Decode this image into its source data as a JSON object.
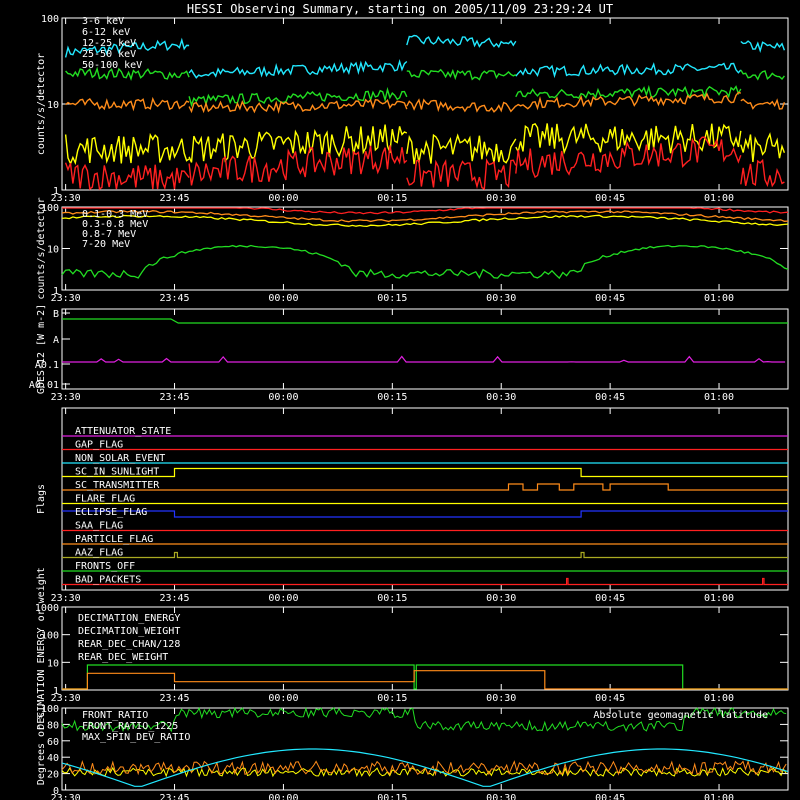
{
  "title": "HESSI Observing Summary, starting on 2005/11/09 23:29:24 UT",
  "colors": {
    "red": "#ff2020",
    "orange": "#ff8c1a",
    "yellow": "#ffff00",
    "green": "#22dd22",
    "cyan": "#22e8ff",
    "magenta": "#e020e0",
    "blue": "#2233ff",
    "olive": "#aaaa22",
    "white": "#ffffff"
  },
  "time_ticks": [
    "23:30",
    "23:45",
    "00:00",
    "00:15",
    "00:30",
    "00:45",
    "01:00"
  ],
  "chart_data": [
    {
      "type": "line",
      "panel": "count-rates-low",
      "ylabel": "counts/s/detector",
      "yscale": "log",
      "ylim": [
        1,
        100
      ],
      "yticks": [
        "1",
        "10",
        "100"
      ],
      "legend": [
        "3-6 keV",
        "6-12 keV",
        "12-25 keV",
        "25-50 keV",
        "50-100 keV"
      ],
      "series": [
        {
          "name": "50-100 keV",
          "color": "cyan",
          "segments": [
            [
              "23:30",
              40,
              "23:47",
              50
            ],
            [
              "23:47",
              22,
              "00:17",
              28
            ],
            [
              "00:17",
              55,
              "00:32",
              50
            ],
            [
              "00:32",
              24,
              "01:03",
              26
            ],
            [
              "01:03",
              48,
              "01:09",
              45
            ]
          ]
        },
        {
          "name": "25-50 keV",
          "color": "green",
          "segments": [
            [
              "23:30",
              23,
              "23:47",
              22
            ],
            [
              "23:47",
              11,
              "00:17",
              13
            ],
            [
              "00:17",
              22,
              "00:32",
              22
            ],
            [
              "00:32",
              13,
              "01:03",
              14
            ],
            [
              "01:03",
              22,
              "01:09",
              22
            ]
          ]
        },
        {
          "name": "6-12 keV",
          "color": "orange",
          "segments": [
            [
              "23:30",
              10,
              "23:47",
              10
            ],
            [
              "23:47",
              9,
              "00:17",
              10
            ],
            [
              "00:17",
              10,
              "00:32",
              9
            ],
            [
              "00:32",
              10,
              "01:03",
              12
            ],
            [
              "01:03",
              10,
              "01:09",
              10
            ]
          ]
        },
        {
          "name": "12-25 keV",
          "color": "yellow",
          "segments": [
            [
              "23:30",
              3,
              "23:47",
              3
            ],
            [
              "23:47",
              3,
              "00:17",
              4
            ],
            [
              "00:17",
              3,
              "00:32",
              3
            ],
            [
              "00:32",
              4,
              "01:03",
              4
            ],
            [
              "01:03",
              3,
              "01:09",
              3
            ]
          ]
        },
        {
          "name": "3-6 keV",
          "color": "red",
          "segments": [
            [
              "23:30",
              1.5,
              "23:47",
              1.3
            ],
            [
              "23:47",
              1.5,
              "00:17",
              2.5
            ],
            [
              "00:17",
              1.5,
              "00:32",
              1.5
            ],
            [
              "00:32",
              2,
              "01:03",
              3
            ],
            [
              "01:03",
              1.5,
              "01:09",
              1.5
            ]
          ]
        }
      ]
    },
    {
      "type": "line",
      "panel": "count-rates-high",
      "ylabel": "counts/s/detector",
      "yscale": "log",
      "ylim": [
        1,
        100
      ],
      "yticks": [
        "1",
        "10",
        "100"
      ],
      "legend": [
        "0.1-0.3 MeV",
        "0.3-0.8 MeV",
        "0.8-7 MeV",
        "7-20 MeV"
      ],
      "series": [
        {
          "name": "0.1-0.3 MeV",
          "color": "red"
        },
        {
          "name": "0.3-0.8 MeV",
          "color": "orange"
        },
        {
          "name": "0.8-7 MeV",
          "color": "yellow"
        },
        {
          "name": "7-20 MeV",
          "color": "green"
        }
      ]
    },
    {
      "type": "line",
      "panel": "goes",
      "ylabel": "GOES-12 [W m-2]",
      "yticks": [
        "B",
        "A",
        "A0.1",
        "A0.01"
      ],
      "series": [
        {
          "color": "green"
        },
        {
          "color": "magenta"
        }
      ]
    },
    {
      "type": "table",
      "panel": "flags",
      "ylabel": "Flags",
      "flags": [
        {
          "name": "ATTENUATOR_STATE",
          "color": "magenta"
        },
        {
          "name": "GAP_FLAG",
          "color": "red"
        },
        {
          "name": "NON_SOLAR_EVENT",
          "color": "cyan"
        },
        {
          "name": "SC_IN_SUNLIGHT",
          "color": "yellow"
        },
        {
          "name": "SC_TRANSMITTER",
          "color": "orange"
        },
        {
          "name": "FLARE_FLAG",
          "color": "yellow"
        },
        {
          "name": "ECLIPSE_FLAG",
          "color": "blue"
        },
        {
          "name": "SAA_FLAG",
          "color": "red"
        },
        {
          "name": "PARTICLE_FLAG",
          "color": "orange"
        },
        {
          "name": "AAZ_FLAG",
          "color": "olive"
        },
        {
          "name": "FRONTS_OFF",
          "color": "green"
        },
        {
          "name": "BAD_PACKETS",
          "color": "red"
        }
      ]
    },
    {
      "type": "line",
      "panel": "decimation",
      "ylabel": "DECIMATION ENERGY or weight",
      "yscale": "log",
      "ylim": [
        1,
        1000
      ],
      "yticks": [
        "1",
        "10",
        "100",
        "1000"
      ],
      "legend": [
        "DECIMATION_ENERGY",
        "DECIMATION_WEIGHT",
        "REAR_DEC_CHAN/128",
        "REAR_DEC_WEIGHT"
      ],
      "series": [
        {
          "name": "DECIMATION_ENERGY",
          "color": "green"
        },
        {
          "name": "DECIMATION_WEIGHT",
          "color": "orange"
        },
        {
          "name": "REAR_DEC_CHAN/128",
          "color": "cyan"
        },
        {
          "name": "REAR_DEC_WEIGHT",
          "color": "olive"
        }
      ]
    },
    {
      "type": "line",
      "panel": "ratios",
      "ylabel": "Degrees or %",
      "ylim": [
        0,
        100
      ],
      "yticks": [
        "0",
        "20",
        "40",
        "60",
        "80",
        "100"
      ],
      "legend": [
        "FRONT_RATIO",
        "FRONT_RATIO_1225",
        "MAX_SPIN_DEV_RATIO",
        "Absolute geomagnetic latitude"
      ],
      "series": [
        {
          "name": "FRONT_RATIO",
          "color": "green"
        },
        {
          "name": "FRONT_RATIO_1225",
          "color": "yellow"
        },
        {
          "name": "MAX_SPIN_DEV_RATIO",
          "color": "orange"
        },
        {
          "name": "Absolute geomagnetic latitude",
          "color": "cyan"
        }
      ]
    }
  ]
}
